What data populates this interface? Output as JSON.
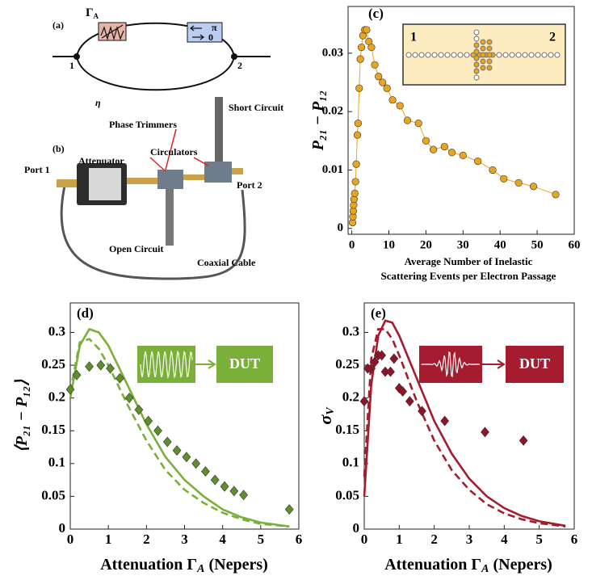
{
  "figure_a": {
    "label": "(a)",
    "gamma": "Γ",
    "gamma_sub": "A",
    "phase_top": "π",
    "phase_bottom": "0",
    "node_1": "1",
    "node_2": "2",
    "eta": "η"
  },
  "figure_b": {
    "label": "(b)",
    "attenuator": "Attenuator",
    "phase_trimmers": "Phase Trimmers",
    "short_circuit": "Short Circuit",
    "circulators": "Circulators",
    "port_1": "Port 1",
    "port_2": "Port 2",
    "open_circuit": "Open Circuit",
    "coaxial_cable": "Coaxial Cable"
  },
  "chart_data": [
    {
      "type": "scatter",
      "panel_label": "(c)",
      "ylabel": "P₂₁ − P₁₂",
      "xlabel": [
        "Average Number of Inelastic",
        "Scattering Events per Electron Passage"
      ],
      "annotations": [
        "1",
        "2"
      ],
      "xlim": [
        -1,
        60
      ],
      "xticks": [
        0,
        10,
        20,
        30,
        40,
        50,
        60
      ],
      "ylim": [
        -0.001,
        0.038
      ],
      "yticks": [
        0,
        0.01,
        0.02,
        0.03
      ],
      "series": [
        {
          "mode": "lines+markers",
          "marker": "circle",
          "color": "#e8a520",
          "x": [
            0.2,
            0.3,
            0.4,
            0.5,
            0.6,
            0.8,
            1,
            1.2,
            1.5,
            1.7,
            2,
            2.3,
            2.6,
            3,
            3.5,
            4,
            4.6,
            5.3,
            6.2,
            7.2,
            8.3,
            9.5,
            11,
            13,
            15,
            18,
            20,
            22,
            25,
            27,
            30,
            34,
            38,
            41,
            45,
            49,
            55
          ],
          "values": [
            0.001,
            0.002,
            0.003,
            0.004,
            0.005,
            0.006,
            0.008,
            0.011,
            0.016,
            0.018,
            0.024,
            0.029,
            0.031,
            0.033,
            0.034,
            0.034,
            0.032,
            0.031,
            0.028,
            0.026,
            0.025,
            0.024,
            0.022,
            0.021,
            0.0185,
            0.018,
            0.015,
            0.0135,
            0.014,
            0.013,
            0.0125,
            0.0115,
            0.01,
            0.0085,
            0.0078,
            0.0072,
            0.0058
          ]
        }
      ]
    },
    {
      "type": "scatter",
      "panel_label": "(d)",
      "ylabel": "⟨P₂₁ − P₁₂⟩",
      "xlabel": [
        "Attenuation Γ",
        "A",
        " (Nepers)"
      ],
      "annotations": [
        "DUT"
      ],
      "xlim": [
        0,
        6
      ],
      "xticks": [
        0,
        1,
        2,
        3,
        4,
        5,
        6
      ],
      "ylim": [
        0,
        0.345
      ],
      "yticks": [
        0,
        0.05,
        0.1,
        0.15,
        0.2,
        0.25,
        0.3
      ],
      "series": [
        {
          "mode": "line",
          "dashed": false,
          "color": "#7ab03a",
          "x": [
            0,
            0.25,
            0.5,
            0.75,
            1,
            1.5,
            2,
            2.5,
            3,
            3.5,
            4,
            4.5,
            5,
            5.75
          ],
          "values": [
            0.2,
            0.28,
            0.305,
            0.3,
            0.28,
            0.22,
            0.16,
            0.11,
            0.075,
            0.05,
            0.03,
            0.018,
            0.01,
            0.004
          ]
        },
        {
          "mode": "line",
          "dashed": true,
          "color": "#7ab03a",
          "x": [
            0,
            0.25,
            0.5,
            0.75,
            1,
            1.5,
            2,
            2.5,
            3,
            3.5,
            4,
            4.5,
            5,
            5.75
          ],
          "values": [
            0.21,
            0.285,
            0.29,
            0.275,
            0.25,
            0.19,
            0.135,
            0.09,
            0.06,
            0.04,
            0.025,
            0.015,
            0.008,
            0.004
          ]
        },
        {
          "mode": "markers",
          "marker": "diamond",
          "color": "#5e8f2c",
          "x": [
            0,
            0.17,
            0.5,
            0.8,
            1.05,
            1.3,
            1.55,
            1.8,
            2.05,
            2.3,
            2.55,
            2.8,
            3.05,
            3.3,
            3.55,
            3.8,
            4.05,
            4.3,
            4.55,
            5.75
          ],
          "values": [
            0.213,
            0.235,
            0.248,
            0.25,
            0.245,
            0.23,
            0.2,
            0.182,
            0.165,
            0.15,
            0.133,
            0.12,
            0.11,
            0.1,
            0.088,
            0.075,
            0.065,
            0.058,
            0.052,
            0.03
          ]
        }
      ]
    },
    {
      "type": "scatter",
      "panel_label": "(e)",
      "ylabel": "σ",
      "ylabel_sub": "V",
      "xlabel": [
        "Attenuation Γ",
        "A",
        " (Nepers)"
      ],
      "annotations": [
        "DUT"
      ],
      "xlim": [
        0,
        6
      ],
      "xticks": [
        0,
        1,
        2,
        3,
        4,
        5,
        6
      ],
      "ylim": [
        0,
        0.345
      ],
      "yticks": [
        0,
        0.05,
        0.1,
        0.15,
        0.2,
        0.25,
        0.3
      ],
      "series": [
        {
          "mode": "line",
          "dashed": false,
          "color": "#a51c30",
          "x": [
            0,
            0.2,
            0.4,
            0.6,
            0.8,
            1,
            1.5,
            2,
            2.5,
            3,
            3.5,
            4,
            4.5,
            5,
            5.75
          ],
          "values": [
            0.05,
            0.22,
            0.295,
            0.318,
            0.315,
            0.295,
            0.23,
            0.165,
            0.115,
            0.077,
            0.05,
            0.032,
            0.02,
            0.012,
            0.005
          ]
        },
        {
          "mode": "line",
          "dashed": true,
          "color": "#a51c30",
          "x": [
            0,
            0.2,
            0.4,
            0.6,
            0.8,
            1,
            1.5,
            2,
            2.5,
            3,
            3.5,
            4,
            4.5,
            5,
            5.75
          ],
          "values": [
            0.08,
            0.26,
            0.305,
            0.305,
            0.29,
            0.265,
            0.195,
            0.135,
            0.09,
            0.06,
            0.038,
            0.024,
            0.015,
            0.009,
            0.004
          ]
        },
        {
          "mode": "markers",
          "marker": "diamond",
          "color": "#8e1428",
          "x": [
            0,
            0.1,
            0.2,
            0.3,
            0.4,
            0.5,
            0.6,
            0.75,
            0.85,
            1,
            1.1,
            1.3,
            1.65,
            2.3,
            3.45,
            4.55
          ],
          "values": [
            0.195,
            0.245,
            0.245,
            0.255,
            0.265,
            0.265,
            0.24,
            0.24,
            0.26,
            0.215,
            0.21,
            0.195,
            0.18,
            0.165,
            0.148,
            0.135
          ]
        }
      ]
    }
  ]
}
